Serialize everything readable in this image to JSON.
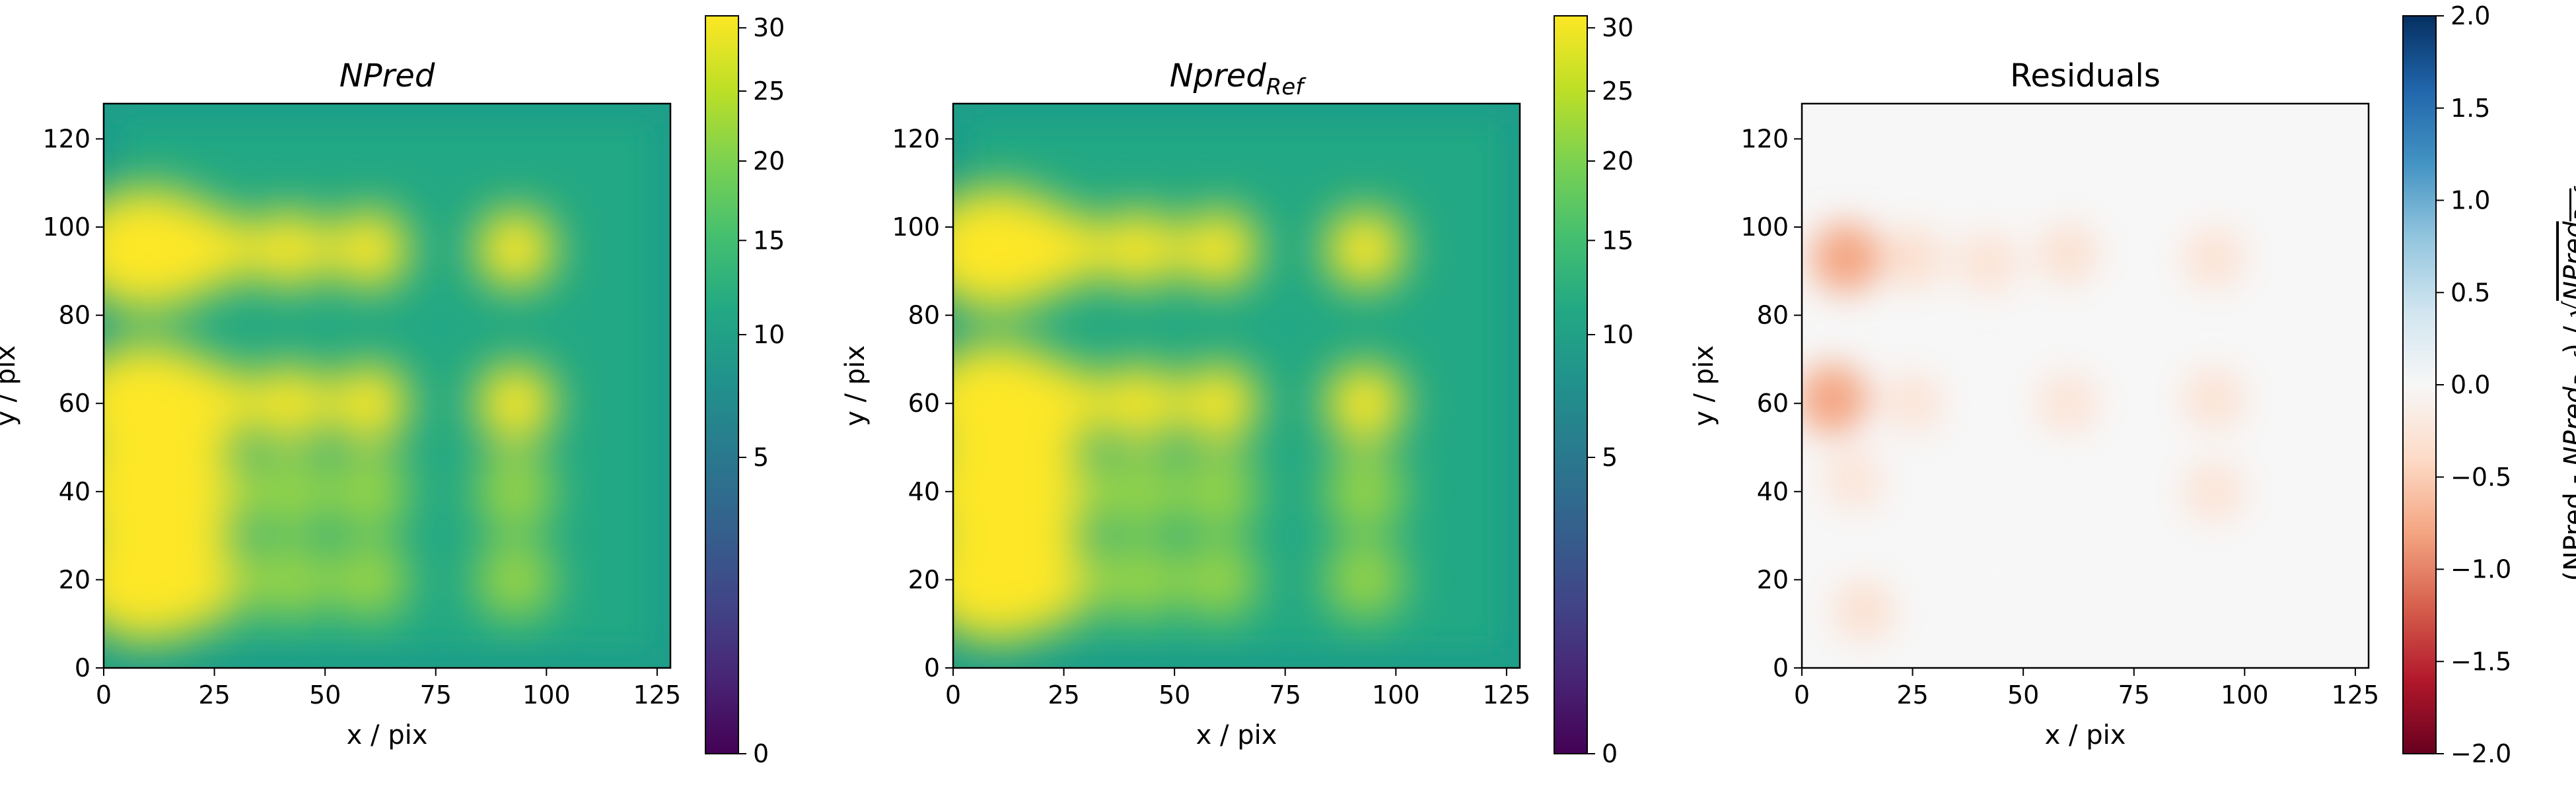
{
  "chart_data": [
    {
      "type": "heatmap",
      "title": "NPred",
      "title_style": "italic",
      "xlabel": "x / pix",
      "ylabel": "y / pix",
      "xlim": [
        0,
        128
      ],
      "ylim": [
        0,
        128
      ],
      "x_ticks": [
        0,
        25,
        50,
        75,
        100,
        125
      ],
      "y_ticks": [
        0,
        20,
        40,
        60,
        80,
        100,
        120
      ],
      "colormap": "viridis",
      "color_scale": "sqrt",
      "vmin": 0,
      "vmax": 31,
      "colorbar_ticks": [
        0,
        5,
        10,
        15,
        20,
        25,
        30
      ],
      "colorbar_label": "",
      "background_level": 12,
      "bright_sources": [
        {
          "x": 10,
          "y": 95
        },
        {
          "x": 25,
          "y": 95
        },
        {
          "x": 42,
          "y": 95
        },
        {
          "x": 60,
          "y": 95
        },
        {
          "x": 93,
          "y": 95
        },
        {
          "x": 10,
          "y": 60
        },
        {
          "x": 25,
          "y": 60
        },
        {
          "x": 42,
          "y": 60
        },
        {
          "x": 60,
          "y": 60
        },
        {
          "x": 93,
          "y": 60
        },
        {
          "x": 10,
          "y": 40
        },
        {
          "x": 25,
          "y": 40
        },
        {
          "x": 42,
          "y": 40
        },
        {
          "x": 60,
          "y": 40
        },
        {
          "x": 93,
          "y": 40
        },
        {
          "x": 10,
          "y": 20
        },
        {
          "x": 25,
          "y": 20
        },
        {
          "x": 42,
          "y": 20
        },
        {
          "x": 60,
          "y": 20
        },
        {
          "x": 93,
          "y": 20
        }
      ]
    },
    {
      "type": "heatmap",
      "title": "Npred",
      "title_subscript": "Ref",
      "title_style": "italic",
      "xlabel": "x / pix",
      "ylabel": "y / pix",
      "xlim": [
        0,
        128
      ],
      "ylim": [
        0,
        128
      ],
      "x_ticks": [
        0,
        25,
        50,
        75,
        100,
        125
      ],
      "y_ticks": [
        0,
        20,
        40,
        60,
        80,
        100,
        120
      ],
      "colormap": "viridis",
      "color_scale": "sqrt",
      "vmin": 0,
      "vmax": 31,
      "colorbar_ticks": [
        0,
        5,
        10,
        15,
        20,
        25,
        30
      ],
      "colorbar_label": "",
      "background_level": 12,
      "bright_sources": [
        {
          "x": 10,
          "y": 95
        },
        {
          "x": 25,
          "y": 95
        },
        {
          "x": 42,
          "y": 95
        },
        {
          "x": 60,
          "y": 95
        },
        {
          "x": 93,
          "y": 95
        },
        {
          "x": 10,
          "y": 60
        },
        {
          "x": 25,
          "y": 60
        },
        {
          "x": 42,
          "y": 60
        },
        {
          "x": 60,
          "y": 60
        },
        {
          "x": 93,
          "y": 60
        },
        {
          "x": 10,
          "y": 40
        },
        {
          "x": 25,
          "y": 40
        },
        {
          "x": 42,
          "y": 40
        },
        {
          "x": 60,
          "y": 40
        },
        {
          "x": 93,
          "y": 40
        },
        {
          "x": 10,
          "y": 20
        },
        {
          "x": 25,
          "y": 20
        },
        {
          "x": 42,
          "y": 20
        },
        {
          "x": 60,
          "y": 20
        },
        {
          "x": 93,
          "y": 20
        }
      ]
    },
    {
      "type": "heatmap",
      "title": "Residuals",
      "xlabel": "x / pix",
      "ylabel": "y / pix",
      "xlim": [
        0,
        128
      ],
      "ylim": [
        0,
        128
      ],
      "x_ticks": [
        0,
        25,
        50,
        75,
        100,
        125
      ],
      "y_ticks": [
        0,
        20,
        40,
        60,
        80,
        100,
        120
      ],
      "colormap": "RdBu",
      "vmin": -2.0,
      "vmax": 2.0,
      "colorbar_ticks": [
        -2.0,
        -1.5,
        -1.0,
        -0.5,
        0.0,
        0.5,
        1.0,
        1.5,
        2.0
      ],
      "colorbar_tick_labels": [
        "−2.0",
        "−1.5",
        "−1.0",
        "−0.5",
        "0.0",
        "0.5",
        "1.0",
        "1.5",
        "2.0"
      ],
      "colorbar_label_parts": {
        "lead": "(NPred - ",
        "ref_base": "NPred",
        "ref_sub": "Ref",
        "mid": ") / √"
      },
      "residual_features": [
        {
          "x": 10,
          "y": 93,
          "value": -0.9
        },
        {
          "x": 25,
          "y": 93,
          "value": -0.4
        },
        {
          "x": 42,
          "y": 92,
          "value": -0.3
        },
        {
          "x": 60,
          "y": 94,
          "value": -0.35
        },
        {
          "x": 93,
          "y": 93,
          "value": -0.3
        },
        {
          "x": 7,
          "y": 61,
          "value": -0.7
        },
        {
          "x": 25,
          "y": 60,
          "value": -0.25
        },
        {
          "x": 42,
          "y": 60,
          "value": -0.2
        },
        {
          "x": 60,
          "y": 60,
          "value": -0.25
        },
        {
          "x": 93,
          "y": 61,
          "value": -0.3
        },
        {
          "x": 12,
          "y": 43,
          "value": -0.25
        },
        {
          "x": 60,
          "y": 44,
          "value": -0.2
        },
        {
          "x": 93,
          "y": 40,
          "value": -0.25
        },
        {
          "x": 14,
          "y": 13,
          "value": -0.35
        },
        {
          "x": 30,
          "y": 22,
          "value": -0.2
        },
        {
          "x": 90,
          "y": 14,
          "value": -0.15
        },
        {
          "x": 22,
          "y": 48,
          "value": 0.15
        },
        {
          "x": 50,
          "y": 104,
          "value": 0.1
        },
        {
          "x": 85,
          "y": 104,
          "value": 0.1
        },
        {
          "x": 45,
          "y": 22,
          "value": 0.1
        }
      ]
    }
  ]
}
